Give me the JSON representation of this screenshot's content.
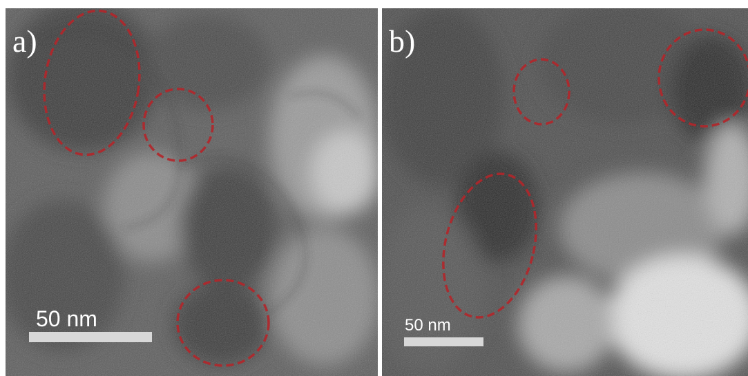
{
  "panels": [
    {
      "label": "a)",
      "scale_bar": "50 nm"
    },
    {
      "label": "b)",
      "scale_bar": "50 nm"
    }
  ]
}
